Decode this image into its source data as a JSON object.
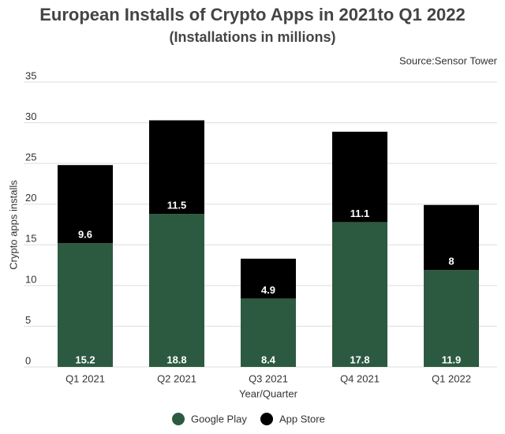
{
  "chart_data": {
    "type": "bar",
    "stacked": true,
    "title": "European Installs of Crypto Apps in 2021to Q1 2022",
    "subtitle": "(Installations in millions)",
    "source": "Source:Sensor Tower",
    "x_label": "Year/Quarter",
    "y_label": "Crypto apps installs",
    "categories": [
      "Q1 2021",
      "Q2 2021",
      "Q3 2021",
      "Q4 2021",
      "Q1 2022"
    ],
    "series": [
      {
        "name": "Google Play",
        "color": "#2c5a40",
        "values": [
          15.2,
          18.8,
          8.4,
          17.8,
          11.9
        ]
      },
      {
        "name": "App Store",
        "color": "#000000",
        "values": [
          9.6,
          11.5,
          4.9,
          11.1,
          8
        ]
      }
    ],
    "ylim": [
      0,
      35
    ],
    "yticks": [
      0,
      5,
      10,
      15,
      20,
      25,
      30,
      35
    ],
    "grid": true
  }
}
